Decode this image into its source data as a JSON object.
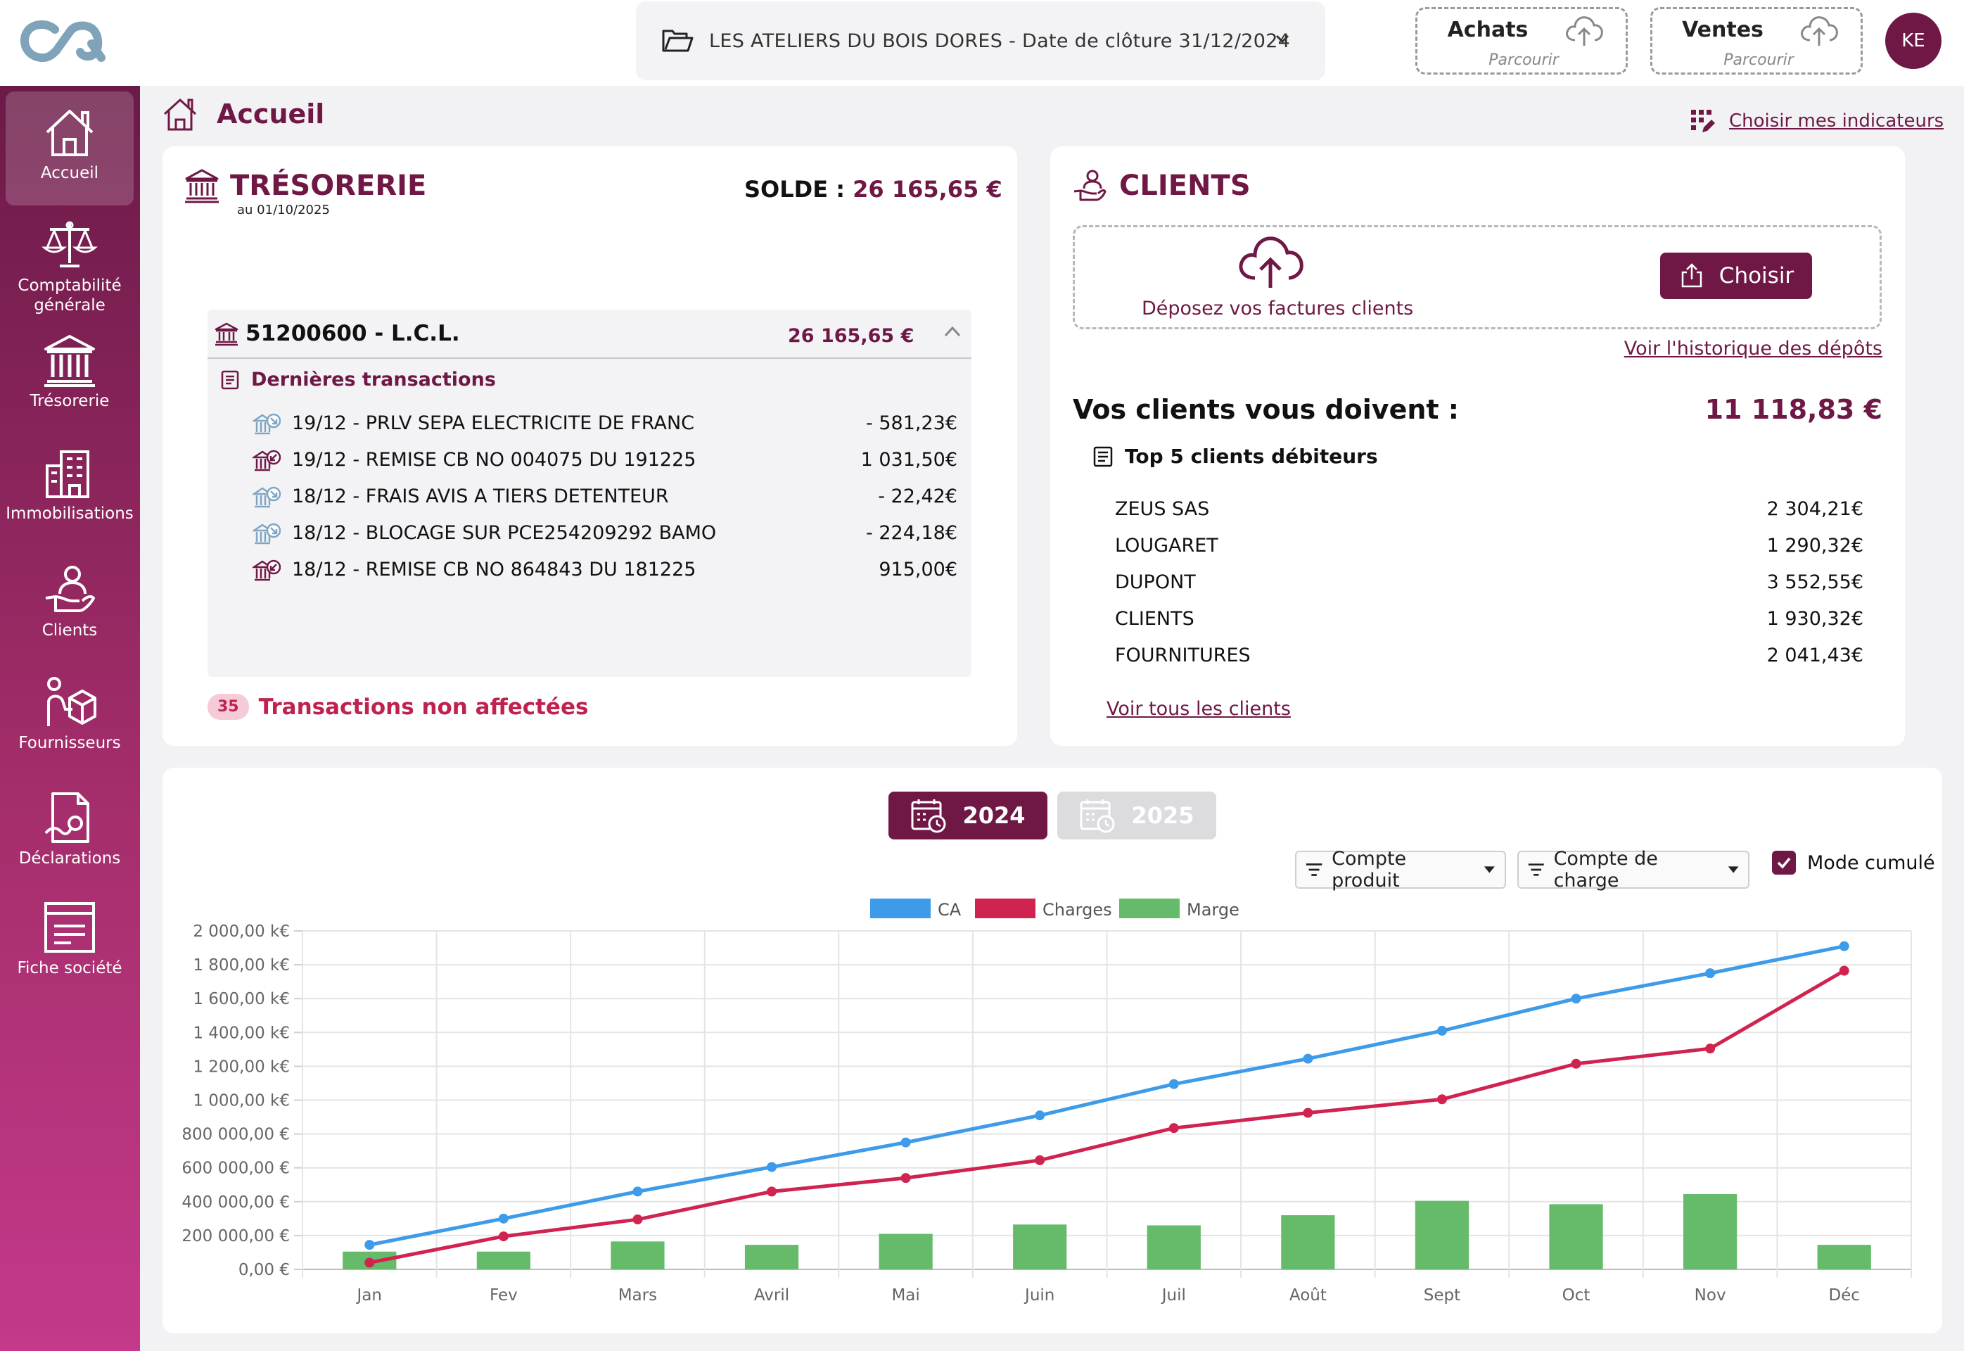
{
  "header": {
    "company": "LES ATELIERS DU BOIS DORES - Date de clôture 31/12/2024",
    "achats_title": "Achats",
    "achats_sub": "Parcourir",
    "ventes_title": "Ventes",
    "ventes_sub": "Parcourir",
    "avatar_initials": "KE"
  },
  "sidebar": {
    "items": [
      {
        "label": "Accueil",
        "icon": "home-icon"
      },
      {
        "label": "Comptabilité générale",
        "icon": "scales-icon"
      },
      {
        "label": "Trésorerie",
        "icon": "bank-icon"
      },
      {
        "label": "Immobilisations",
        "icon": "building-icon"
      },
      {
        "label": "Clients",
        "icon": "client-hand-icon"
      },
      {
        "label": "Fournisseurs",
        "icon": "supplier-box-icon"
      },
      {
        "label": "Déclarations",
        "icon": "declaration-doc-icon"
      },
      {
        "label": "Fiche société",
        "icon": "company-sheet-icon"
      }
    ]
  },
  "breadcrumb": {
    "title": "Accueil",
    "choose_indicators": "Choisir mes indicateurs"
  },
  "tresorerie": {
    "title": "TRÉSORERIE",
    "date": "au 01/10/2025",
    "solde_label": "SOLDE :",
    "solde_value": "26 165,65 €",
    "account_name": "51200600 - L.C.L.",
    "account_amount": "26 165,65 €",
    "last_transactions_label": "Dernières transactions",
    "transactions": [
      {
        "label": "19/12 - PRLV SEPA ELECTRICITE DE FRANC",
        "amount": "- 581,23€",
        "direction": "out"
      },
      {
        "label": "19/12 - REMISE CB NO 004075 DU 191225",
        "amount": "1 031,50€",
        "direction": "in"
      },
      {
        "label": "18/12 - FRAIS AVIS A TIERS DETENTEUR",
        "amount": "- 22,42€",
        "direction": "out"
      },
      {
        "label": "18/12 - BLOCAGE SUR PCE254209292 BAMO",
        "amount": "- 224,18€",
        "direction": "out"
      },
      {
        "label": "18/12 - REMISE CB NO 864843 DU 181225",
        "amount": "915,00€",
        "direction": "in"
      }
    ],
    "unassigned_count": "35",
    "unassigned_label": "Transactions non affectées"
  },
  "clients": {
    "title": "CLIENTS",
    "drop_label": "Déposez vos factures clients",
    "choose_button": "Choisir",
    "history_link": "Voir l'historique des dépôts",
    "owe_label": "Vos clients vous doivent :",
    "owe_amount": "11 118,83 €",
    "top5_label": "Top 5 clients débiteurs",
    "top5": [
      {
        "name": "ZEUS SAS",
        "amount": "2 304,21€"
      },
      {
        "name": "LOUGARET",
        "amount": "1 290,32€"
      },
      {
        "name": "DUPONT",
        "amount": "3 552,55€"
      },
      {
        "name": "CLIENTS",
        "amount": "1 930,32€"
      },
      {
        "name": "FOURNITURES",
        "amount": "2 041,43€"
      }
    ],
    "all_clients_link": "Voir tous les clients"
  },
  "chart_controls": {
    "year_2024": "2024",
    "year_2025": "2025",
    "filter_produit": "Compte produit",
    "filter_charge": "Compte de charge",
    "mode_cumule": "Mode cumulé"
  },
  "colors": {
    "brand": "#6f1845",
    "ca": "#3d9be9",
    "charges": "#d0234f",
    "marge": "#66bb6a"
  },
  "chart_data": {
    "type": "line",
    "categories": [
      "Jan",
      "Fev",
      "Mars",
      "Avril",
      "Mai",
      "Juin",
      "Juil",
      "Août",
      "Sept",
      "Oct",
      "Nov",
      "Déc"
    ],
    "series": [
      {
        "name": "CA",
        "type": "line",
        "values": [
          145000,
          300000,
          460000,
          605000,
          750000,
          910000,
          1095000,
          1245000,
          1410000,
          1600000,
          1750000,
          1910000
        ]
      },
      {
        "name": "Charges",
        "type": "line",
        "values": [
          40000,
          195000,
          295000,
          460000,
          540000,
          645000,
          835000,
          925000,
          1005000,
          1215000,
          1305000,
          1765000
        ]
      },
      {
        "name": "Marge",
        "type": "bar",
        "values": [
          105000,
          105000,
          165000,
          145000,
          210000,
          265000,
          260000,
          320000,
          405000,
          385000,
          445000,
          145000
        ]
      }
    ],
    "ylim": [
      0,
      2000000
    ],
    "yticks": [
      "0,00 €",
      "200 000,00 €",
      "400 000,00 €",
      "600 000,00 €",
      "800 000,00 €",
      "1 000,00 k€",
      "1 200,00 k€",
      "1 400,00 k€",
      "1 600,00 k€",
      "1 800,00 k€",
      "2 000,00 k€"
    ],
    "legend": "top-center",
    "grid": true,
    "xlabel": "",
    "ylabel": ""
  }
}
